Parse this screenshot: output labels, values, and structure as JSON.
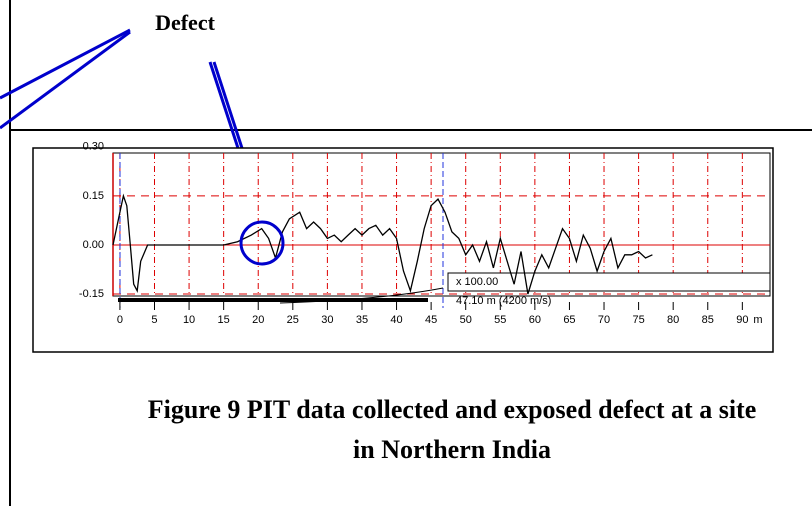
{
  "chart_data": {
    "type": "line",
    "annotations": {
      "defect": "Defect",
      "gain": "x 100.00",
      "length": "47.10 m (4200 m/s)"
    },
    "x_label": "m",
    "x": [
      -1,
      0,
      0.5,
      1,
      1.5,
      2,
      2.5,
      3,
      4,
      10,
      15,
      17,
      19,
      20.5,
      21.5,
      22.5,
      23.5,
      24.5,
      26,
      27,
      28,
      29,
      30,
      31,
      32,
      33,
      34,
      35,
      36,
      37,
      38,
      39,
      40,
      41,
      42,
      43,
      44,
      45,
      46,
      47,
      48,
      49,
      50,
      51,
      52,
      53,
      54,
      55,
      56,
      57,
      58,
      59,
      60,
      61,
      62,
      63,
      64,
      65,
      66,
      67,
      68,
      69,
      70,
      71,
      72,
      73,
      74,
      75,
      76,
      77
    ],
    "series": [
      {
        "color": "#000000",
        "values": [
          0,
          0.1,
          0.15,
          0.12,
          0.0,
          -0.12,
          -0.14,
          -0.05,
          0,
          0,
          0,
          0.01,
          0.03,
          0.05,
          0.02,
          -0.04,
          0.04,
          0.08,
          0.1,
          0.05,
          0.07,
          0.05,
          0.02,
          0.03,
          0.01,
          0.03,
          0.05,
          0.03,
          0.05,
          0.06,
          0.03,
          0.05,
          0.02,
          -0.08,
          -0.14,
          -0.05,
          0.05,
          0.12,
          0.14,
          0.1,
          0.04,
          0.02,
          -0.03,
          0.0,
          -0.05,
          0.01,
          -0.07,
          0.02,
          -0.05,
          -0.12,
          -0.02,
          -0.15,
          -0.08,
          -0.03,
          -0.07,
          -0.01,
          0.05,
          0.02,
          -0.05,
          0.03,
          -0.01,
          -0.08,
          -0.02,
          0.02,
          -0.07,
          -0.03,
          -0.03,
          -0.02,
          -0.04,
          -0.03
        ]
      }
    ],
    "xlim": [
      -1,
      94
    ],
    "xticks": [
      0,
      5,
      10,
      15,
      20,
      25,
      30,
      35,
      40,
      45,
      50,
      55,
      60,
      65,
      70,
      75,
      80,
      85,
      90
    ],
    "ylim": [
      -0.156,
      0.281
    ],
    "yticks": [
      -0.15,
      {
        "value": 0,
        "label": "0.00"
      },
      0.15,
      {
        "value": 0.3,
        "label": "0.30"
      }
    ],
    "grid": true,
    "caption_lines": [
      "Figure 9 PIT data collected and exposed defect at a site",
      "in Northern India"
    ]
  }
}
